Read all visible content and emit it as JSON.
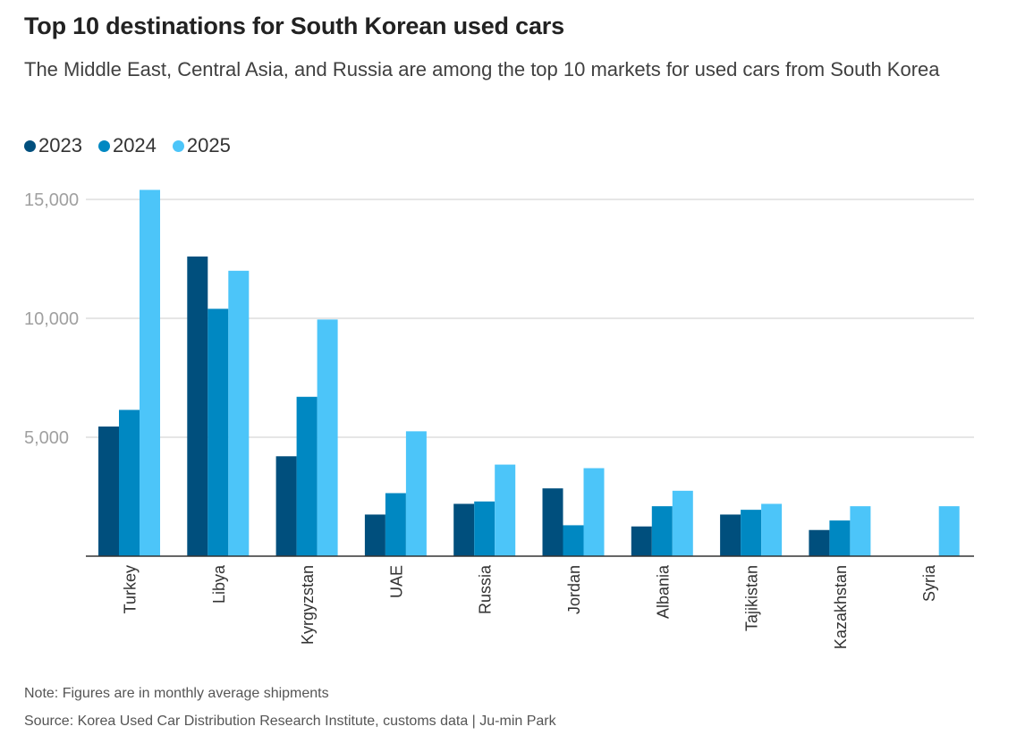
{
  "chart_data": {
    "type": "bar",
    "title": "Top 10 destinations for South Korean used cars",
    "subtitle": "The Middle East, Central Asia, and Russia are among the top 10 markets for used cars from South Korea",
    "categories": [
      "Turkey",
      "Libya",
      "Kyrgyzstan",
      "UAE",
      "Russia",
      "Jordan",
      "Albania",
      "Tajikistan",
      "Kazakhstan",
      "Syria"
    ],
    "series": [
      {
        "name": "2023",
        "color": "#004f7d",
        "values": [
          5450,
          12600,
          4200,
          1750,
          2200,
          2850,
          1250,
          1750,
          1100,
          null
        ]
      },
      {
        "name": "2024",
        "color": "#0088c2",
        "values": [
          6150,
          10400,
          6700,
          2650,
          2300,
          1300,
          2100,
          1950,
          1500,
          null
        ]
      },
      {
        "name": "2025",
        "color": "#4cc5f9",
        "values": [
          15400,
          12000,
          9950,
          5250,
          3850,
          3700,
          2750,
          2200,
          2100,
          2100
        ]
      }
    ],
    "yticks": [
      5000,
      10000,
      15000
    ],
    "ytick_labels": [
      "5,000",
      "10,000",
      "15,000"
    ],
    "ylim": [
      0,
      15500
    ],
    "xlabel": "",
    "ylabel": "",
    "grid": true,
    "legend": "top-left"
  },
  "footer": {
    "note": "Note: Figures are in monthly average shipments",
    "source": "Source: Korea Used Car Distribution Research Institute, customs data | Ju-min Park"
  }
}
